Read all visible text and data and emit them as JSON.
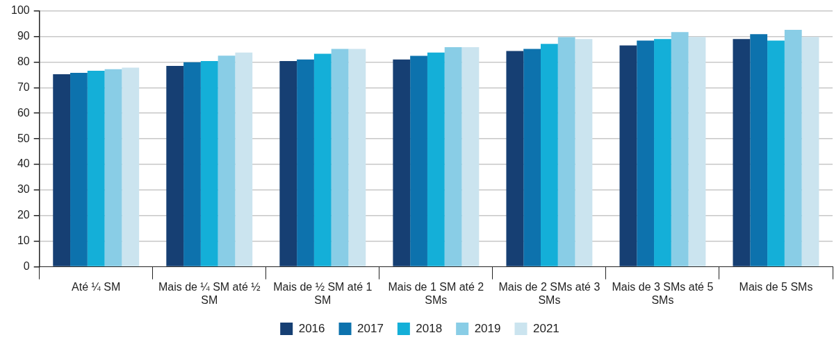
{
  "chart_data": {
    "type": "bar",
    "categories": [
      "Até ¼ SM",
      "Mais de ¼ SM até ½ SM",
      "Mais de ½ SM até 1 SM",
      "Mais de 1 SM até 2 SMs",
      "Mais de 2 SMs até 3 SMs",
      "Mais de 3 SMs até 5 SMs",
      "Mais de 5 SMs"
    ],
    "series": [
      {
        "name": "2016",
        "color": "#163f73",
        "values": [
          75.2,
          78.5,
          80.4,
          81.0,
          84.3,
          86.5,
          89.0
        ]
      },
      {
        "name": "2017",
        "color": "#0d72ad",
        "values": [
          75.8,
          79.9,
          81.0,
          82.4,
          85.1,
          88.4,
          90.9
        ]
      },
      {
        "name": "2018",
        "color": "#14afd8",
        "values": [
          76.6,
          80.4,
          83.2,
          83.7,
          87.1,
          89.0,
          88.4
        ]
      },
      {
        "name": "2019",
        "color": "#89cde6",
        "values": [
          77.2,
          82.5,
          85.1,
          85.8,
          89.7,
          91.7,
          92.6
        ]
      },
      {
        "name": "2021",
        "color": "#cbe4ef",
        "values": [
          77.8,
          83.7,
          85.1,
          85.8,
          89.0,
          89.8,
          89.8
        ]
      }
    ],
    "ylim": [
      0,
      100
    ],
    "yticks": [
      0,
      10,
      20,
      30,
      40,
      50,
      60,
      70,
      80,
      90,
      100
    ],
    "grid": "y",
    "legend": "bottom"
  }
}
